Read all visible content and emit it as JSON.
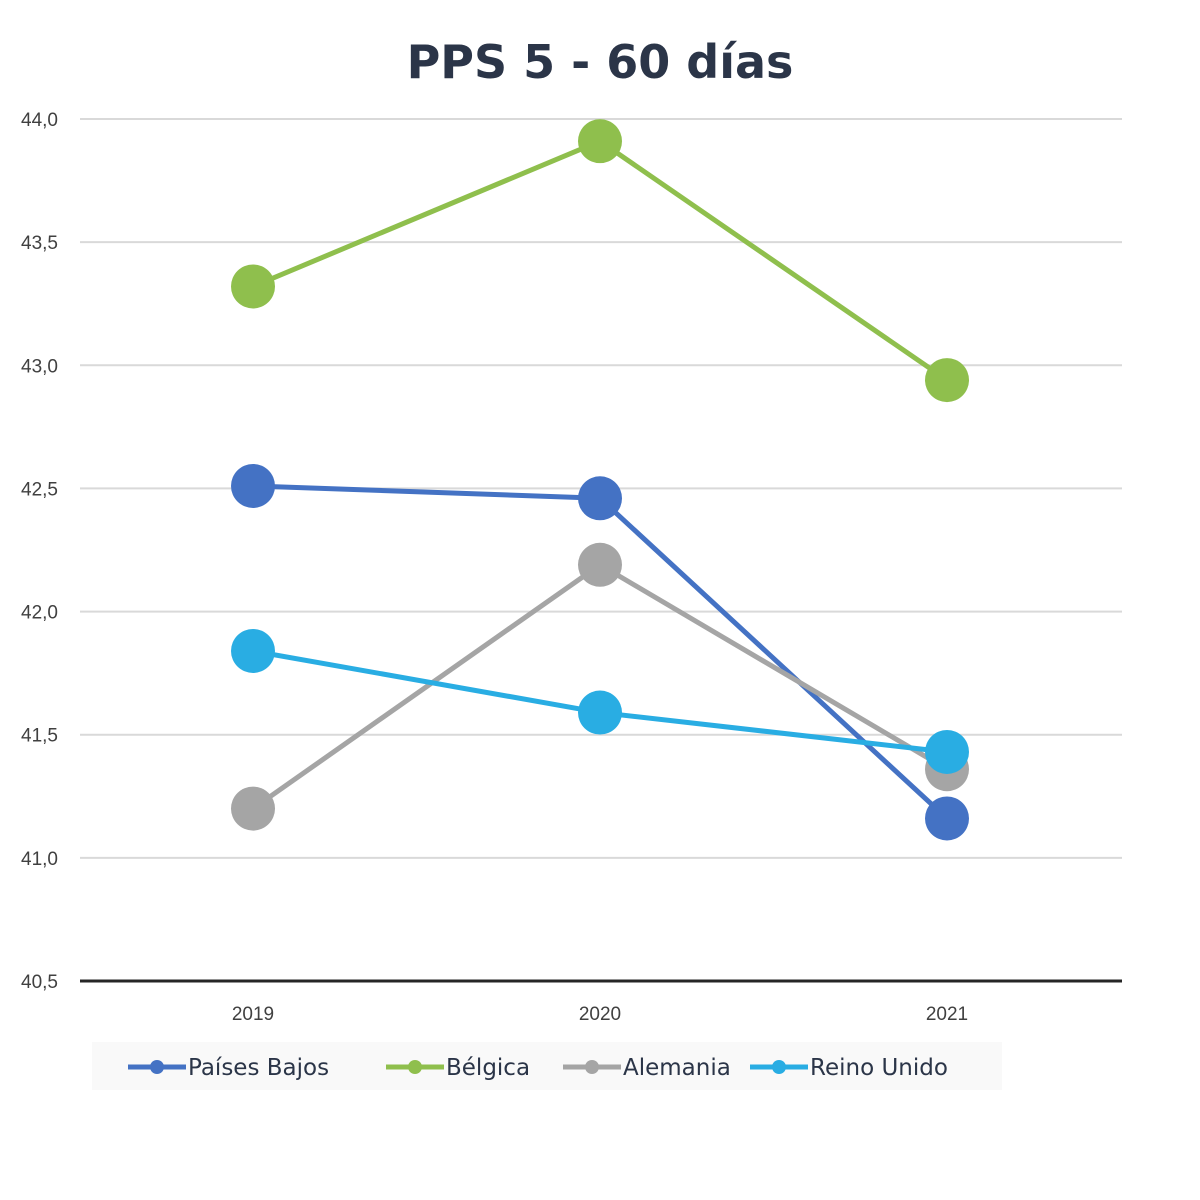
{
  "chart_data": {
    "type": "line",
    "title": "PPS 5 - 60 días",
    "xlabel": "",
    "ylabel": "",
    "categories": [
      "2019",
      "2020",
      "2021"
    ],
    "ylim": [
      40.5,
      44.0
    ],
    "yticks": [
      "40,5",
      "41,0",
      "41,5",
      "42,0",
      "42,5",
      "43,0",
      "43,5",
      "44,0"
    ],
    "ytick_values": [
      40.5,
      41.0,
      41.5,
      42.0,
      42.5,
      43.0,
      43.5,
      44.0
    ],
    "grid": true,
    "legend_position": "bottom",
    "series": [
      {
        "name": "Países Bajos",
        "color": "#4472c4",
        "values": [
          42.51,
          42.46,
          41.16
        ]
      },
      {
        "name": "Bélgica",
        "color": "#8fbf4d",
        "values": [
          43.32,
          43.91,
          42.94
        ]
      },
      {
        "name": "Alemania",
        "color": "#a5a5a5",
        "values": [
          41.2,
          42.19,
          41.36
        ]
      },
      {
        "name": "Reino Unido",
        "color": "#29ade3",
        "values": [
          41.84,
          41.59,
          41.43
        ]
      }
    ]
  }
}
